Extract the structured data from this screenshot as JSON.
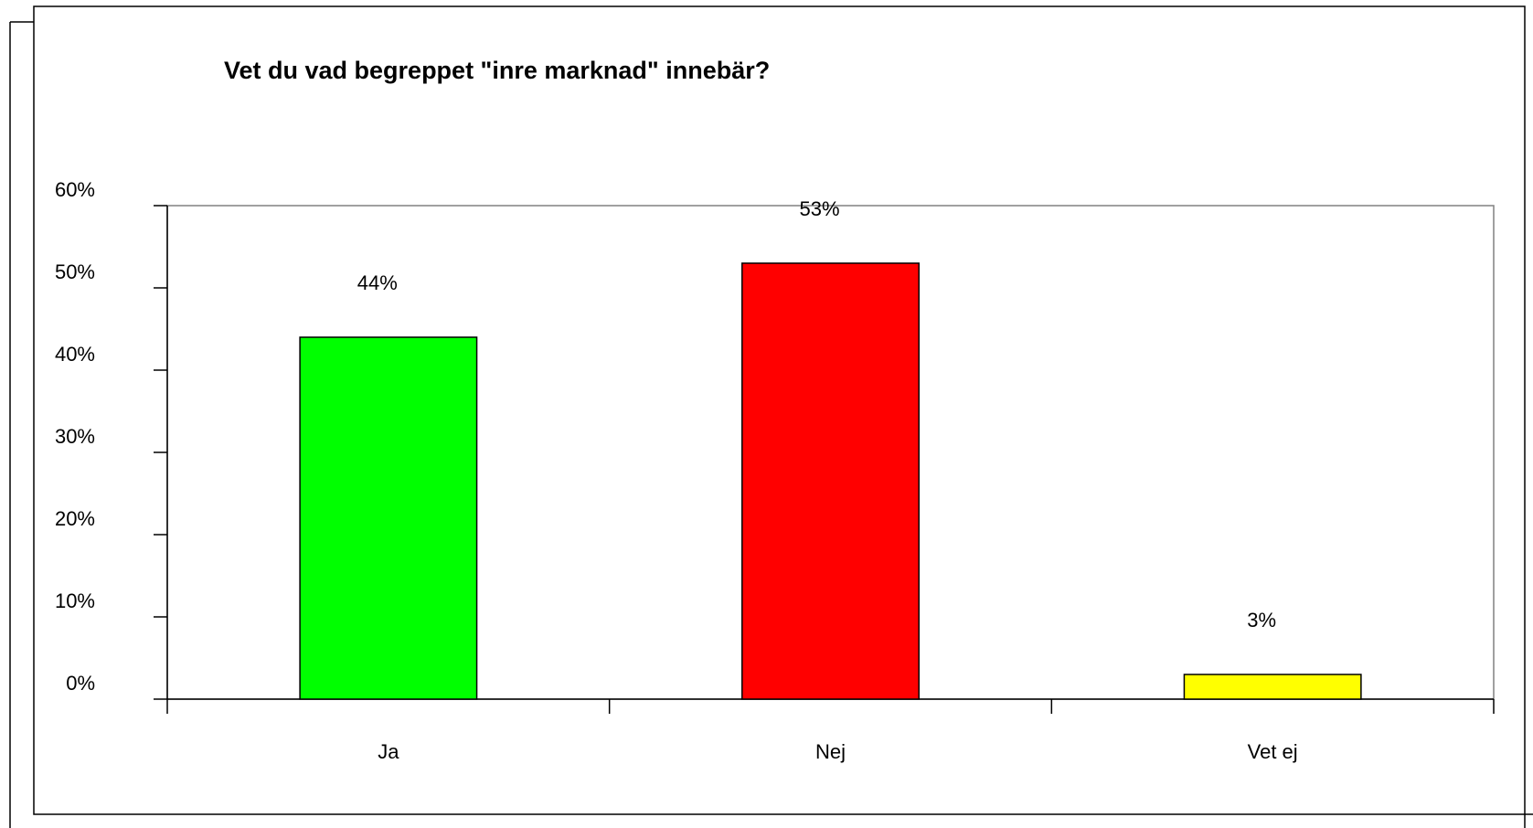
{
  "chart_data": {
    "type": "bar",
    "title": "Vet du vad begreppet \"inre marknad\" innebär?",
    "xlabel": "",
    "ylabel": "",
    "categories": [
      "Ja",
      "Nej",
      "Vet ej"
    ],
    "values": [
      44,
      53,
      3
    ],
    "value_labels": [
      "44%",
      "53%",
      "3%"
    ],
    "colors": [
      "#00ff00",
      "#ff0000",
      "#ffff00"
    ],
    "ylim": [
      0,
      60
    ],
    "yticks": [
      0,
      10,
      20,
      30,
      40,
      50,
      60
    ],
    "ytick_labels": [
      "0%",
      "10%",
      "20%",
      "30%",
      "40%",
      "50%",
      "60%"
    ],
    "grid": false,
    "legend": "none"
  }
}
